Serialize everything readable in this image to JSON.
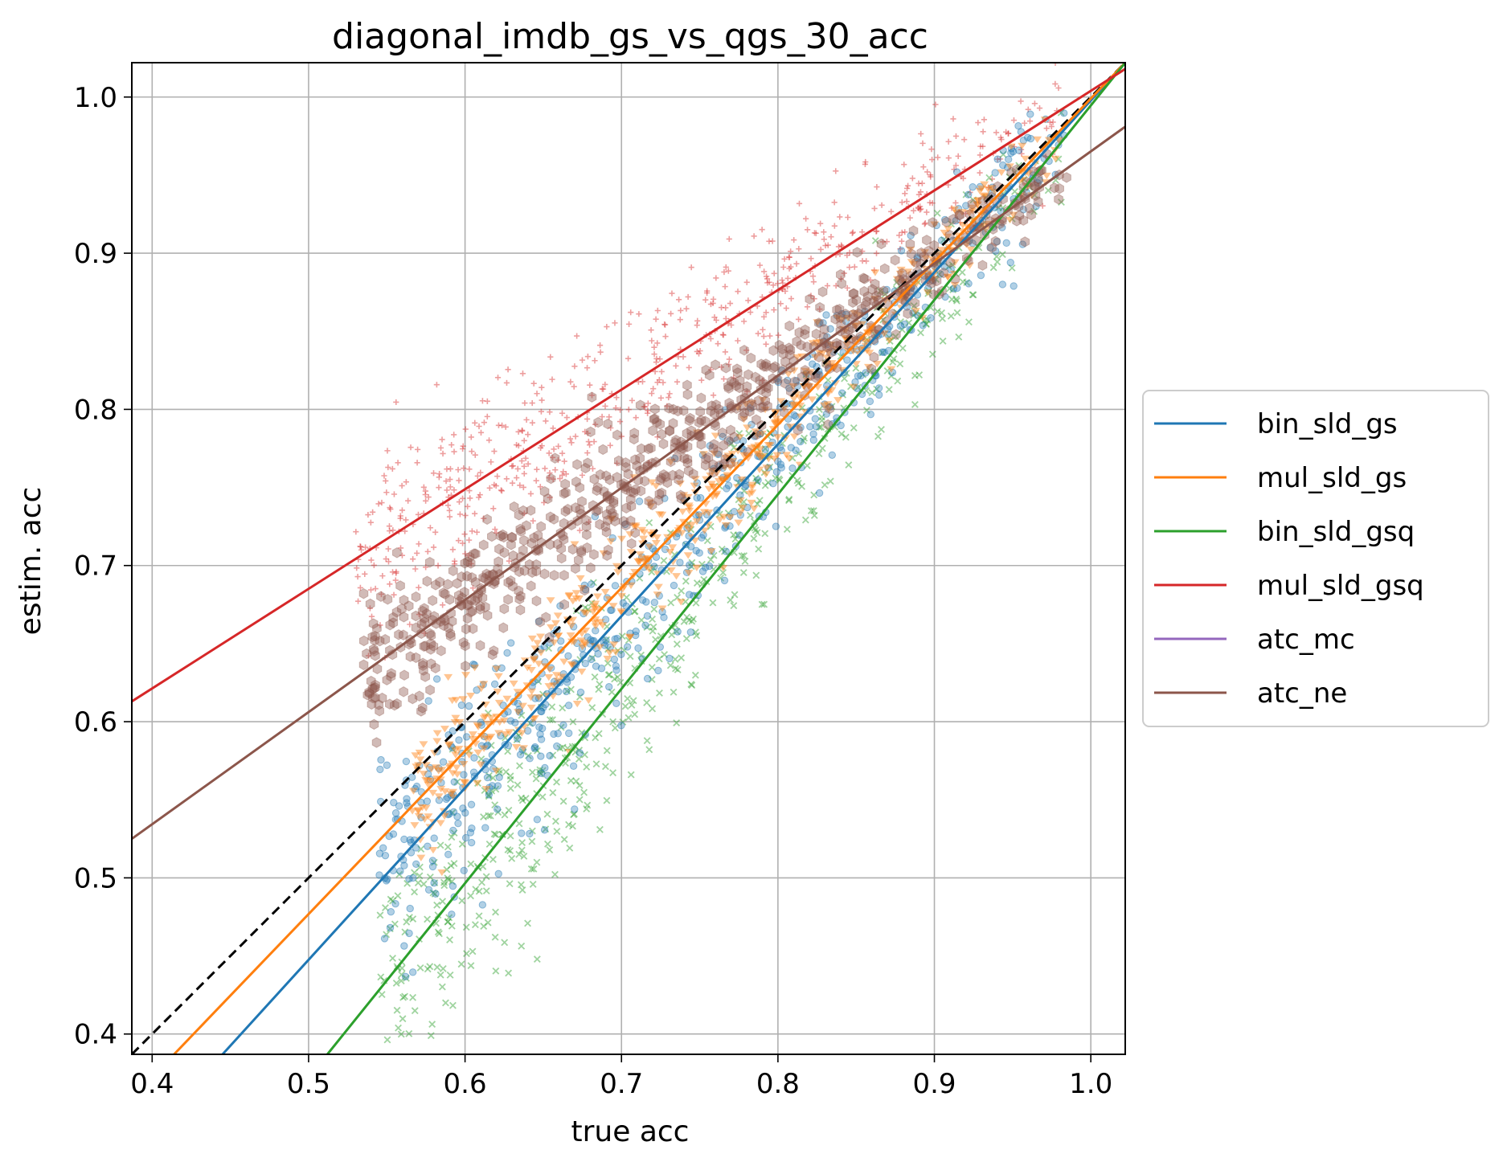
{
  "chart_data": {
    "type": "scatter",
    "title": "diagonal_imdb_gs_vs_qgs_30_acc",
    "xlabel": "true acc",
    "ylabel": "estim. acc",
    "xlim": [
      0.387,
      1.022
    ],
    "ylim": [
      0.387,
      1.022
    ],
    "xticks": [
      "0.4",
      "0.5",
      "0.6",
      "0.7",
      "0.8",
      "0.9",
      "1.0"
    ],
    "yticks": [
      "0.4",
      "0.5",
      "0.6",
      "0.7",
      "0.8",
      "0.9",
      "1.0"
    ],
    "grid": true,
    "legend_position": "outside right, vertically centered",
    "diagonal": {
      "style": "dashed",
      "color": "#000000",
      "from": [
        0.387,
        0.387
      ],
      "to": [
        1.022,
        1.022
      ]
    },
    "series": [
      {
        "name": "bin_sld_gs",
        "color": "#1f77b4",
        "marker": "circle",
        "fit_line": {
          "from": [
            0.445,
            0.387
          ],
          "to": [
            1.022,
            1.022
          ]
        },
        "points_trend": {
          "x_range": [
            0.545,
            0.985
          ],
          "spread": 0.03
        }
      },
      {
        "name": "mul_sld_gs",
        "color": "#ff7f0e",
        "marker": "triangle-down",
        "fit_line": {
          "from": [
            0.414,
            0.387
          ],
          "to": [
            1.022,
            1.022
          ]
        },
        "points_trend": {
          "x_range": [
            0.565,
            0.985
          ],
          "spread": 0.02
        }
      },
      {
        "name": "bin_sld_gsq",
        "color": "#2ca02c",
        "marker": "x",
        "fit_line": {
          "from": [
            0.512,
            0.387
          ],
          "to": [
            1.022,
            1.022
          ]
        },
        "points_trend": {
          "x_range": [
            0.545,
            0.985
          ],
          "spread": 0.035
        }
      },
      {
        "name": "mul_sld_gsq",
        "color": "#d62728",
        "marker": "plus",
        "fit_line": {
          "from": [
            0.387,
            0.613
          ],
          "to": [
            1.022,
            1.018
          ]
        },
        "points_trend": {
          "x_range": [
            0.53,
            0.985
          ],
          "spread": 0.025
        }
      },
      {
        "name": "atc_mc",
        "color": "#9467bd",
        "marker": "hexagon",
        "fit_line": null,
        "points_trend": null
      },
      {
        "name": "atc_ne",
        "color": "#8c564b",
        "marker": "hexagon",
        "fit_line": {
          "from": [
            0.387,
            0.525
          ],
          "to": [
            1.022,
            0.981
          ]
        },
        "points_trend": {
          "x_range": [
            0.535,
            0.985
          ],
          "spread": 0.02
        }
      }
    ]
  }
}
